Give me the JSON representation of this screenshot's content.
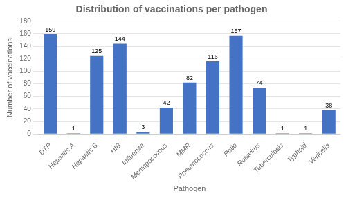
{
  "chart_data": {
    "type": "bar",
    "title": "Distribution of vaccinations per pathogen",
    "xlabel": "Pathogen",
    "ylabel": "Number of vaccinations",
    "categories": [
      "DTP",
      "Hepatitis A",
      "Hepatitis B",
      "HIB",
      "Influenza",
      "Meningococcus",
      "MMR",
      "Pneumococcus",
      "Polio",
      "Rotavirus",
      "Tuberculosis",
      "Typhoid",
      "Varicella"
    ],
    "values": [
      159,
      1,
      125,
      144,
      3,
      42,
      82,
      116,
      157,
      74,
      1,
      1,
      38
    ],
    "color": "#4472C4",
    "ylim": [
      0,
      180
    ],
    "yticks": [
      0,
      20,
      40,
      60,
      80,
      100,
      120,
      140,
      160,
      180
    ],
    "grid": true,
    "data_labels": true
  }
}
